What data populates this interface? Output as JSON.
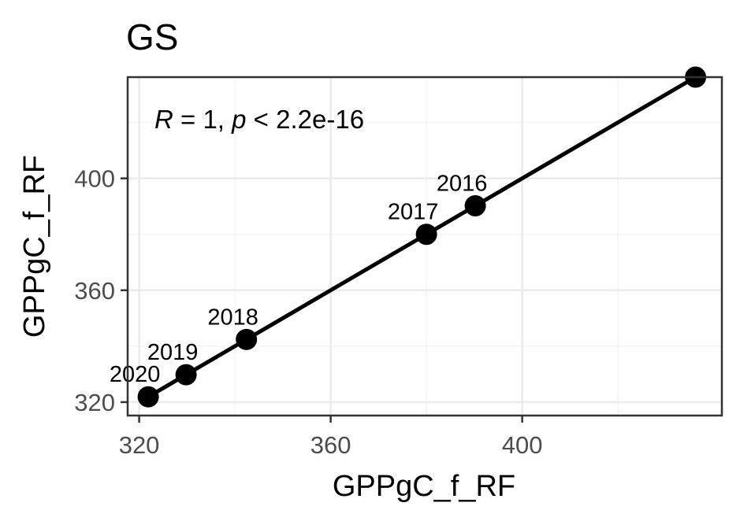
{
  "chart_data": {
    "type": "scatter",
    "title": "GS",
    "xlabel": "GPPgC_f_RF",
    "ylabel": "GPPgC_f_RF",
    "xlim": [
      317.6,
      441.7
    ],
    "ylim": [
      315.2,
      436.2
    ],
    "xticks": [
      320,
      360,
      400
    ],
    "yticks": [
      320,
      360,
      400
    ],
    "tick_labels": {
      "x": [
        "320",
        "360",
        "400"
      ],
      "y": [
        "320",
        "360",
        "400"
      ]
    },
    "points": [
      {
        "label": "2020",
        "x": 321.9,
        "y": 321.9
      },
      {
        "label": "2019",
        "x": 329.8,
        "y": 329.8
      },
      {
        "label": "2018",
        "x": 342.4,
        "y": 342.4
      },
      {
        "label": "2017",
        "x": 380.0,
        "y": 380.0
      },
      {
        "label": "2016",
        "x": 390.2,
        "y": 390.2
      },
      {
        "label": "",
        "x": 436.2,
        "y": 436.2
      }
    ],
    "fit_line": {
      "x": [
        321.9,
        436.2
      ],
      "y": [
        321.9,
        436.2
      ]
    },
    "annotation": {
      "r_symbol": "R",
      "r_value": " = 1, ",
      "p_symbol": "p",
      "p_value": " < 2.2e-16"
    },
    "grid": true,
    "legend": "none"
  }
}
